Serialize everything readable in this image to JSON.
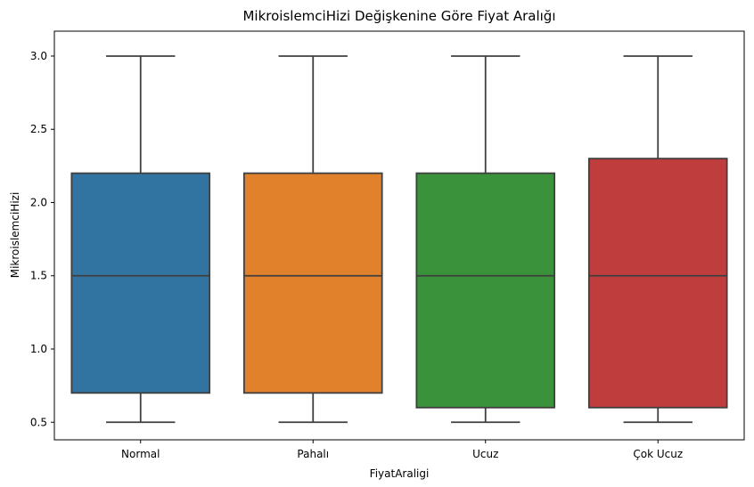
{
  "chart_data": {
    "type": "box",
    "title": "MikroislemciHizi Değişkenine Göre Fiyat Aralığı",
    "xlabel": "FiyatAraligi",
    "ylabel": "MikroislemciHizi",
    "ylim": [
      0.38,
      3.17
    ],
    "yticks": [
      0.5,
      1.0,
      1.5,
      2.0,
      2.5,
      3.0
    ],
    "ytick_labels": [
      "0.5",
      "1.0",
      "1.5",
      "2.0",
      "2.5",
      "3.0"
    ],
    "grid": false,
    "categories": [
      "Normal",
      "Pahalı",
      "Ucuz",
      "Çok Ucuz"
    ],
    "boxes": [
      {
        "category": "Normal",
        "min": 0.5,
        "q1": 0.7,
        "median": 1.5,
        "q3": 2.2,
        "max": 3.0,
        "color": "#3274a1"
      },
      {
        "category": "Pahalı",
        "min": 0.5,
        "q1": 0.7,
        "median": 1.5,
        "q3": 2.2,
        "max": 3.0,
        "color": "#e1812c"
      },
      {
        "category": "Ucuz",
        "min": 0.5,
        "q1": 0.6,
        "median": 1.5,
        "q3": 2.2,
        "max": 3.0,
        "color": "#3a923a"
      },
      {
        "category": "Çok Ucuz",
        "min": 0.5,
        "q1": 0.6,
        "median": 1.5,
        "q3": 2.3,
        "max": 3.0,
        "color": "#c03d3e"
      }
    ]
  }
}
